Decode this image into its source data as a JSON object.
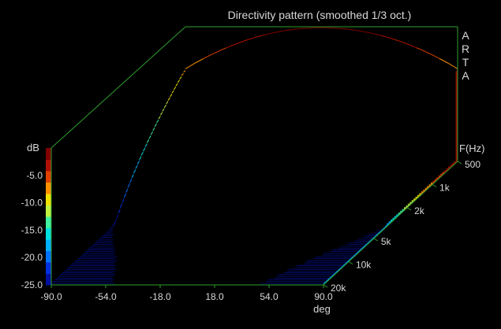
{
  "chart_data": {
    "type": "waterfall-3d",
    "title": "Directivity pattern (smoothed 1/3 oct.)",
    "brand": "ARTA",
    "x_label": "deg",
    "x_ticks": [
      "-90.0",
      "-54.0",
      "-18.0",
      "18.0",
      "54.0",
      "90.0"
    ],
    "x_range": [
      -90,
      90
    ],
    "y_label": "dB",
    "y_ticks": [
      "-5.0",
      "-10.0",
      "-15.0",
      "-20.0",
      "-25.0"
    ],
    "y_range": [
      -25,
      0
    ],
    "z_label": "F(Hz)",
    "z_ticks": [
      "500",
      "1k",
      "2k",
      "5k",
      "10k",
      "20k"
    ],
    "z_range": [
      500,
      20000
    ],
    "z_scale": "log",
    "colormap": [
      "#0010a0",
      "#0030e0",
      "#0070ff",
      "#00b0ff",
      "#00e0e0",
      "#40f0a0",
      "#c0f040",
      "#f0e000",
      "#ff9000",
      "#e04000",
      "#b01000",
      "#800000"
    ],
    "axes_color": "#2e9e2e",
    "background": "#000000"
  }
}
